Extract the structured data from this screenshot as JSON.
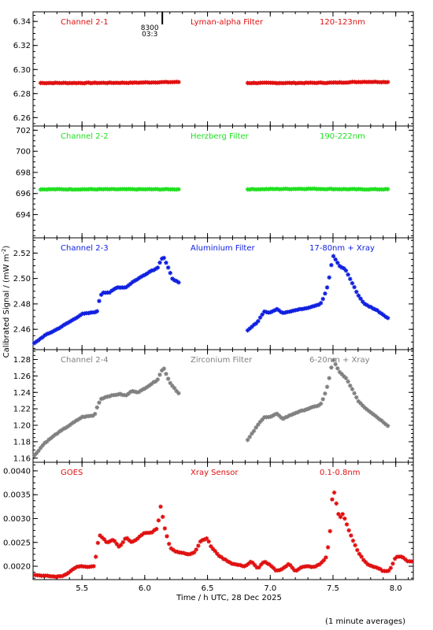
{
  "figure": {
    "xlabel": "Time / h UTC, 28 Dec 2025",
    "ylabel": "Calibrated Signal / (mW m",
    "ylabel_sup": "-2",
    "ylabel_close": ")",
    "footnote": "(1 minute averages)",
    "marker_text_1": "8300",
    "marker_text_2": "03:3",
    "marker_x": 6.14
  },
  "chart_data": [
    {
      "type": "scatter",
      "channel": "Channel 2-1",
      "filter": "Lyman-alpha Filter",
      "band": "120-123nm",
      "color": "#e01010",
      "xlim": [
        5.11,
        8.14
      ],
      "ylim": [
        6.253,
        6.348
      ],
      "yticks": [
        6.26,
        6.28,
        6.3,
        6.32,
        6.34
      ],
      "yticklabels": [
        "6.26",
        "6.28",
        "6.30",
        "6.32",
        "6.34"
      ],
      "segments": [
        {
          "x": [
            5.17,
            5.5,
            5.9,
            6.1,
            6.28
          ],
          "y": [
            6.2888,
            6.2888,
            6.289,
            6.2894,
            6.2896
          ]
        },
        {
          "x": [
            6.82,
            7.2,
            7.5,
            7.75,
            7.95
          ],
          "y": [
            6.2888,
            6.2888,
            6.289,
            6.2898,
            6.2896
          ]
        }
      ]
    },
    {
      "type": "scatter",
      "channel": "Channel 2-2",
      "filter": "Herzberg Filter",
      "band": "190-222nm",
      "color": "#20e020",
      "xlim": [
        5.11,
        8.14
      ],
      "ylim": [
        691.8,
        702.4
      ],
      "yticks": [
        694,
        696,
        698,
        700,
        702
      ],
      "yticklabels": [
        "694",
        "696",
        "698",
        "700",
        "702"
      ],
      "segments": [
        {
          "x": [
            5.17,
            5.6,
            6.0,
            6.28
          ],
          "y": [
            696.4,
            696.4,
            696.4,
            696.4
          ]
        },
        {
          "x": [
            6.82,
            7.3,
            7.7,
            7.95
          ],
          "y": [
            696.4,
            696.45,
            696.4,
            696.4
          ]
        }
      ]
    },
    {
      "type": "scatter",
      "channel": "Channel 2-3",
      "filter": "Aluminium Filter",
      "band": "17-80nm + Xray",
      "color": "#1020e0",
      "xlim": [
        5.11,
        8.14
      ],
      "ylim": [
        2.444,
        2.532
      ],
      "yticks": [
        2.46,
        2.48,
        2.5,
        2.52
      ],
      "yticklabels": [
        "2.46",
        "2.48",
        "2.50",
        "2.52"
      ],
      "segments": [
        {
          "x": [
            5.12,
            5.2,
            5.3,
            5.42,
            5.5,
            5.57,
            5.62,
            5.64,
            5.66,
            5.72,
            5.78,
            5.85,
            5.9,
            5.95,
            6.0,
            6.05,
            6.1,
            6.13,
            6.15,
            6.18,
            6.22,
            6.28
          ],
          "y": [
            2.449,
            2.455,
            2.46,
            2.467,
            2.472,
            2.473,
            2.474,
            2.484,
            2.489,
            2.489,
            2.493,
            2.493,
            2.497,
            2.5,
            2.503,
            2.506,
            2.508,
            2.515,
            2.517,
            2.51,
            2.5,
            2.496
          ]
        },
        {
          "x": [
            6.82,
            6.9,
            6.95,
            7.0,
            7.05,
            7.1,
            7.2,
            7.3,
            7.4,
            7.43,
            7.46,
            7.5,
            7.52,
            7.55,
            7.6,
            7.65,
            7.7,
            7.75,
            7.85,
            7.95
          ],
          "y": [
            2.459,
            2.466,
            2.474,
            2.473,
            2.476,
            2.473,
            2.475,
            2.477,
            2.48,
            2.486,
            2.495,
            2.518,
            2.515,
            2.51,
            2.507,
            2.497,
            2.487,
            2.48,
            2.475,
            2.468
          ]
        }
      ]
    },
    {
      "type": "scatter",
      "channel": "Channel 2-4",
      "filter": "Zirconium Filter",
      "band": "6-20nm + Xray",
      "color": "#808080",
      "xlim": [
        5.11,
        8.14
      ],
      "ylim": [
        1.155,
        1.292
      ],
      "yticks": [
        1.16,
        1.18,
        1.2,
        1.22,
        1.24,
        1.26,
        1.28
      ],
      "yticklabels": [
        "1.16",
        "1.18",
        "1.20",
        "1.22",
        "1.24",
        "1.26",
        "1.28"
      ],
      "segments": [
        {
          "x": [
            5.12,
            5.2,
            5.3,
            5.4,
            5.5,
            5.6,
            5.62,
            5.65,
            5.7,
            5.8,
            5.85,
            5.9,
            5.95,
            6.0,
            6.05,
            6.1,
            6.13,
            6.15,
            6.2,
            6.28
          ],
          "y": [
            1.163,
            1.178,
            1.19,
            1.2,
            1.21,
            1.212,
            1.222,
            1.232,
            1.235,
            1.238,
            1.236,
            1.242,
            1.24,
            1.245,
            1.25,
            1.255,
            1.265,
            1.27,
            1.252,
            1.237
          ]
        },
        {
          "x": [
            6.82,
            6.9,
            6.95,
            7.0,
            7.05,
            7.1,
            7.2,
            7.3,
            7.4,
            7.43,
            7.46,
            7.5,
            7.55,
            7.6,
            7.65,
            7.7,
            7.75,
            7.85,
            7.95
          ],
          "y": [
            1.182,
            1.2,
            1.21,
            1.21,
            1.214,
            1.208,
            1.215,
            1.22,
            1.225,
            1.235,
            1.25,
            1.28,
            1.265,
            1.258,
            1.245,
            1.23,
            1.222,
            1.21,
            1.198
          ]
        }
      ]
    },
    {
      "type": "scatter",
      "channel": "GOES",
      "filter": "Xray Sensor",
      "band": "0.1-0.8nm",
      "color": "#e01010",
      "xlim": [
        5.11,
        8.14
      ],
      "ylim": [
        0.00172,
        0.00418
      ],
      "yticks": [
        0.002,
        0.0025,
        0.003,
        0.0035,
        0.004
      ],
      "yticklabels": [
        "0.0020",
        "0.0025",
        "0.0030",
        "0.0035",
        "0.0040"
      ],
      "segments": [
        {
          "x": [
            5.11,
            5.2,
            5.3,
            5.35,
            5.4,
            5.45,
            5.5,
            5.55,
            5.6,
            5.62,
            5.64,
            5.66,
            5.7,
            5.75,
            5.8,
            5.85,
            5.9,
            5.95,
            6.0,
            6.05,
            6.1,
            6.13,
            6.15,
            6.18,
            6.2,
            6.25,
            6.3,
            6.35,
            6.4,
            6.45,
            6.5,
            6.53,
            6.6,
            6.7,
            6.8,
            6.85,
            6.9,
            6.95,
            7.0,
            7.05,
            7.1,
            7.15,
            7.2,
            7.25,
            7.3,
            7.35,
            7.4,
            7.45,
            7.48,
            7.5,
            7.52,
            7.55,
            7.58,
            7.62,
            7.65,
            7.7,
            7.75,
            7.8,
            7.85,
            7.9,
            7.95,
            8.0,
            8.05,
            8.1,
            8.14
          ],
          "y": [
            0.00182,
            0.0018,
            0.00178,
            0.0018,
            0.00188,
            0.00198,
            0.002,
            0.00198,
            0.002,
            0.0024,
            0.00265,
            0.0026,
            0.0025,
            0.00255,
            0.0024,
            0.0026,
            0.0025,
            0.0026,
            0.0027,
            0.0027,
            0.0028,
            0.0033,
            0.0029,
            0.0026,
            0.0024,
            0.0023,
            0.00228,
            0.00225,
            0.0023,
            0.00255,
            0.00258,
            0.0024,
            0.0022,
            0.00205,
            0.002,
            0.0021,
            0.00195,
            0.0021,
            0.00202,
            0.0019,
            0.00195,
            0.00205,
            0.0019,
            0.00198,
            0.002,
            0.00198,
            0.00205,
            0.0022,
            0.0028,
            0.0037,
            0.0034,
            0.003,
            0.0031,
            0.0028,
            0.0026,
            0.0023,
            0.0021,
            0.002,
            0.00198,
            0.0019,
            0.0019,
            0.0022,
            0.0022,
            0.0021,
            0.0021
          ]
        }
      ]
    }
  ],
  "xaxis": {
    "ticks": [
      5.5,
      6.0,
      6.5,
      7.0,
      7.5,
      8.0
    ],
    "ticklabels": [
      "5.5",
      "6.0",
      "6.5",
      "7.0",
      "7.5",
      "8.0"
    ],
    "minor_step": 0.1
  }
}
